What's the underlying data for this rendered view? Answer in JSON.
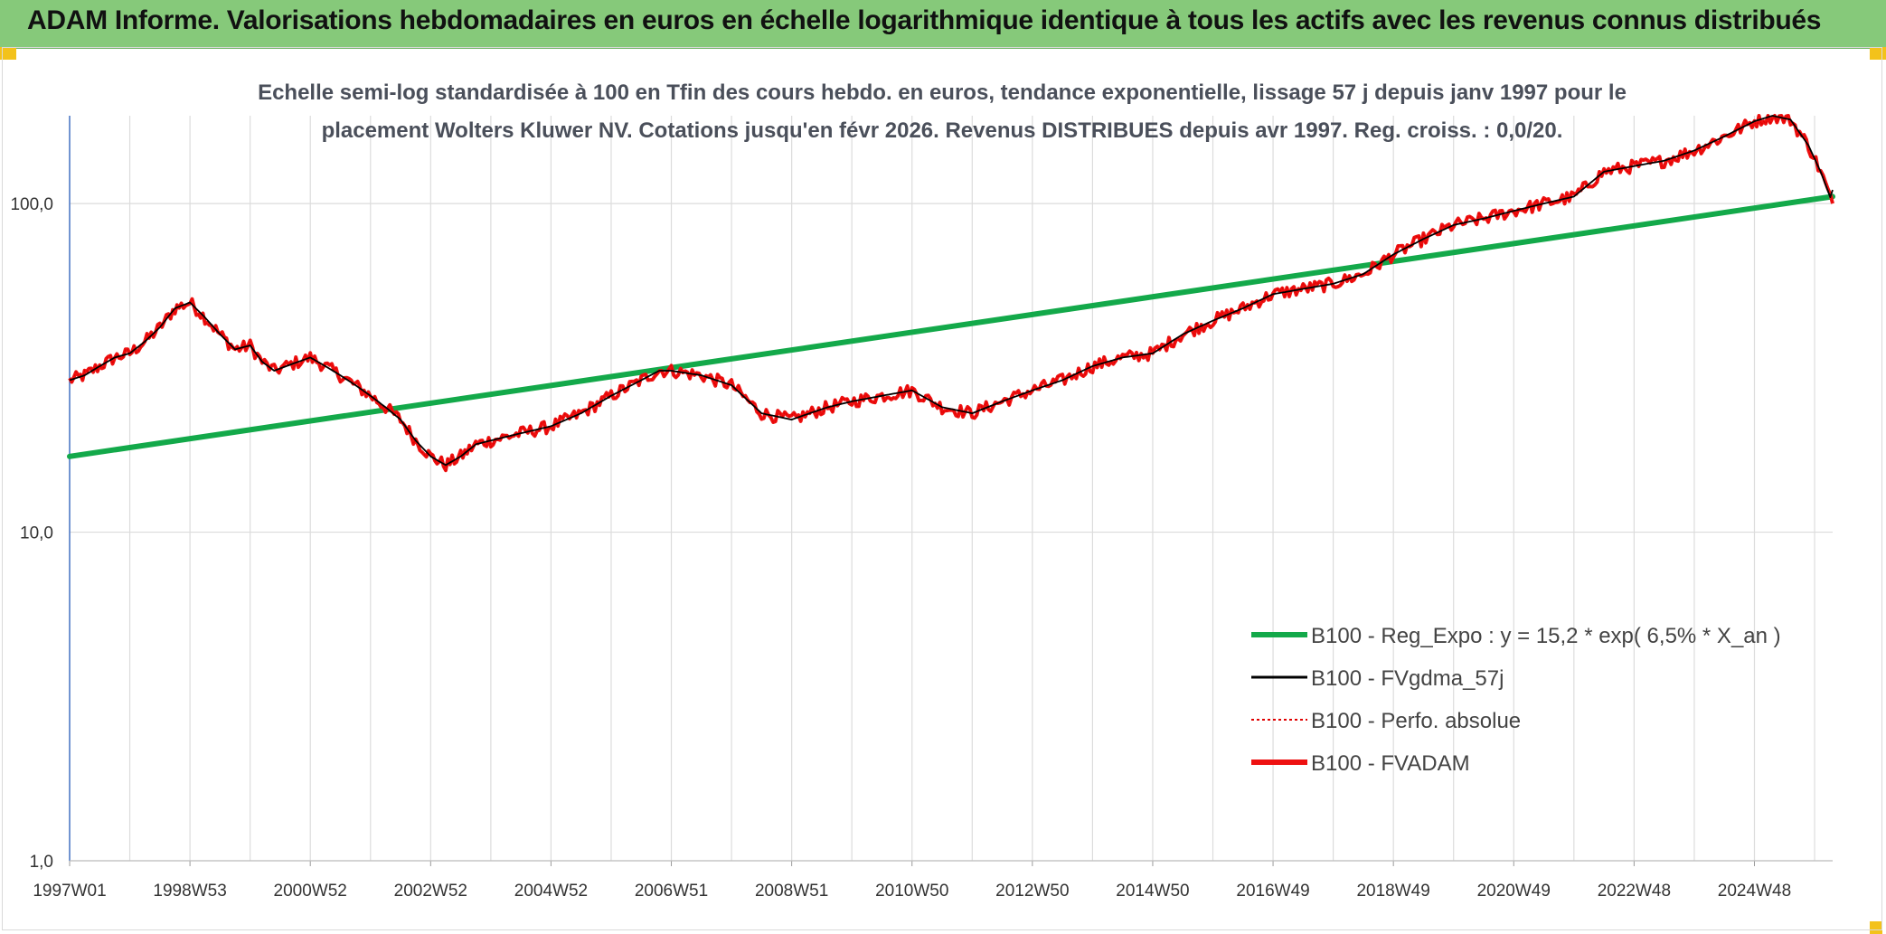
{
  "header": {
    "title": "ADAM Informe. Valorisations hebdomadaires en euros en échelle logarithmique identique à tous les actifs avec les revenus connus distribués"
  },
  "colors": {
    "header_bg": "#86c97a",
    "corner": "#f3c21b",
    "reg_expo": "#13a94a",
    "fvgdma": "#000000",
    "perfo": "#e00000",
    "fvadam": "#ee1111",
    "grid": "#dcdcdc",
    "y_axis": "#4472c4"
  },
  "chart_data": {
    "type": "line",
    "title_lines": [
      "Echelle semi-log standardisée à 100 en Tfin des cours hebdo. en euros, tendance exponentielle, lissage 57 j depuis janv 1997 pour le",
      "placement Wolters Kluwer NV. Cotations jusqu'en févr 2026. Revenus DISTRIBUES depuis avr 1997. Reg. croiss. : 0,0/20."
    ],
    "y_scale": "log",
    "ylim": [
      1,
      185
    ],
    "y_ticks": [
      {
        "value": 1,
        "label": "1,0"
      },
      {
        "value": 10,
        "label": "10,0"
      },
      {
        "value": 100,
        "label": "100,0"
      }
    ],
    "x_range": [
      1997.0,
      2026.3
    ],
    "x_ticks": [
      {
        "value": 1997.0,
        "label": "1997W01"
      },
      {
        "value": 1999.0,
        "label": "1998W53"
      },
      {
        "value": 2001.0,
        "label": "2000W52"
      },
      {
        "value": 2003.0,
        "label": "2002W52"
      },
      {
        "value": 2005.0,
        "label": "2004W52"
      },
      {
        "value": 2007.0,
        "label": "2006W51"
      },
      {
        "value": 2009.0,
        "label": "2008W51"
      },
      {
        "value": 2011.0,
        "label": "2010W50"
      },
      {
        "value": 2013.0,
        "label": "2012W50"
      },
      {
        "value": 2015.0,
        "label": "2014W50"
      },
      {
        "value": 2017.0,
        "label": "2016W49"
      },
      {
        "value": 2019.0,
        "label": "2018W49"
      },
      {
        "value": 2021.0,
        "label": "2020W49"
      },
      {
        "value": 2023.0,
        "label": "2022W48"
      },
      {
        "value": 2025.0,
        "label": "2024W48"
      }
    ],
    "x_minor_gridlines": [
      1998.0,
      2000.0,
      2002.0,
      2004.0,
      2006.0,
      2008.0,
      2010.0,
      2012.0,
      2014.0,
      2016.0,
      2018.0,
      2020.0,
      2022.0,
      2024.0,
      2026.0
    ],
    "legend_placement": "bottom-right",
    "series": [
      {
        "name": "B100 - Reg_Expo : y = 15,2 * exp( 6,5% *  X_an )",
        "style": "line-thick",
        "x": [
          1997.0,
          2026.3
        ],
        "values": [
          17.0,
          105.0
        ]
      },
      {
        "name": "B100 - FVgdma_57j",
        "style": "line-thin"
      },
      {
        "name": "B100 - Perfo. absolue",
        "style": "dotted"
      },
      {
        "name": "B100 - FVADAM",
        "style": "line-thick",
        "x": [
          1997.0,
          1997.25,
          1997.5,
          1997.75,
          1998.0,
          1998.25,
          1998.5,
          1998.75,
          1999.0,
          1999.25,
          1999.5,
          1999.75,
          2000.0,
          2000.2,
          2000.4,
          2000.6,
          2000.8,
          2001.0,
          2001.25,
          2001.5,
          2001.75,
          2002.0,
          2002.25,
          2002.5,
          2002.75,
          2003.0,
          2003.25,
          2003.5,
          2003.75,
          2004.0,
          2004.5,
          2005.0,
          2005.5,
          2006.0,
          2006.5,
          2006.8,
          2007.0,
          2007.5,
          2008.0,
          2008.5,
          2009.0,
          2009.3,
          2009.6,
          2010.0,
          2010.5,
          2011.0,
          2011.5,
          2012.0,
          2012.5,
          2013.0,
          2013.5,
          2014.0,
          2014.5,
          2015.0,
          2015.5,
          2016.0,
          2016.5,
          2017.0,
          2017.5,
          2018.0,
          2018.5,
          2019.0,
          2019.5,
          2020.0,
          2020.5,
          2021.0,
          2021.5,
          2022.0,
          2022.5,
          2023.0,
          2023.5,
          2024.0,
          2024.5,
          2025.0,
          2025.3,
          2025.6,
          2025.9,
          2026.1,
          2026.3
        ],
        "values": [
          29,
          30,
          32,
          34,
          35,
          38,
          42,
          48,
          50,
          45,
          40,
          36,
          37,
          33,
          31,
          32,
          33,
          34,
          32,
          30,
          28,
          26,
          24,
          22,
          19,
          17,
          16,
          17,
          18.5,
          19,
          20,
          21,
          23,
          26,
          29,
          31,
          31,
          30,
          28,
          23,
          22,
          23,
          24,
          25,
          26,
          27,
          24,
          23,
          25,
          27,
          29,
          32,
          34,
          35,
          40,
          44,
          48,
          53,
          55,
          57,
          61,
          70,
          78,
          86,
          90,
          95,
          100,
          105,
          125,
          130,
          135,
          145,
          160,
          178,
          185,
          180,
          150,
          125,
          100
        ]
      }
    ]
  }
}
